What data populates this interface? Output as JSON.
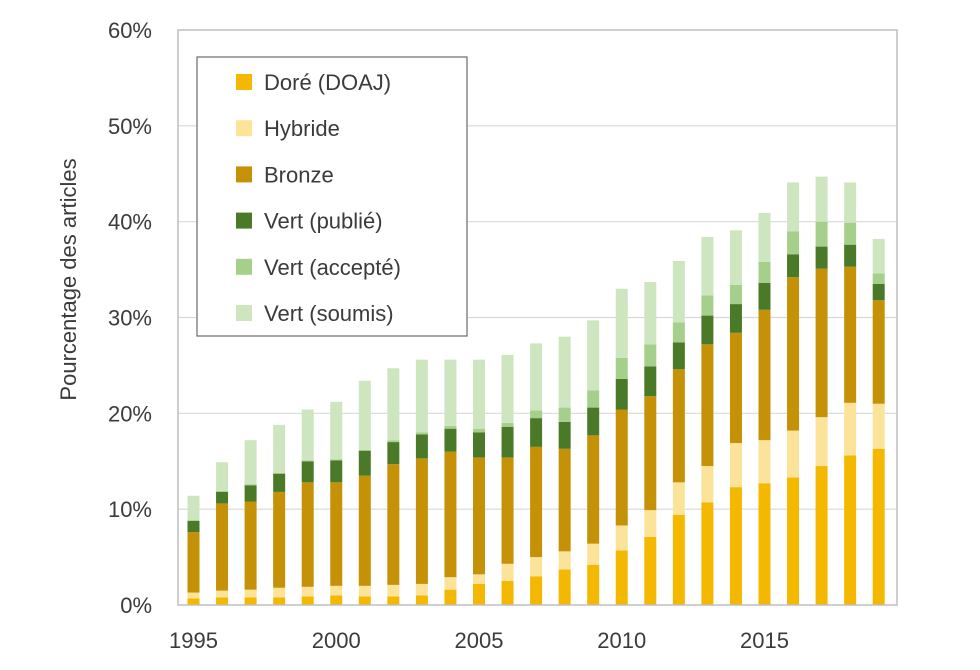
{
  "chart_data": {
    "type": "bar",
    "stacked": true,
    "title": "",
    "xlabel": "",
    "ylabel": "Pourcentage des articles",
    "ylim": [
      0,
      60
    ],
    "ytick_values": [
      0,
      10,
      20,
      30,
      40,
      50,
      60
    ],
    "ytick_labels": [
      "0%",
      "10%",
      "20%",
      "30%",
      "40%",
      "50%",
      "60%"
    ],
    "xtick_labels": [
      "1995",
      "2000",
      "2005",
      "2010",
      "2015"
    ],
    "xtick_years": [
      1995,
      2000,
      2005,
      2010,
      2015
    ],
    "grid": "horizontal",
    "legend_position": "top-left",
    "categories": [
      "1995",
      "1996",
      "1997",
      "1998",
      "1999",
      "2000",
      "2001",
      "2002",
      "2003",
      "2004",
      "2005",
      "2006",
      "2007",
      "2008",
      "2009",
      "2010",
      "2011",
      "2012",
      "2013",
      "2014",
      "2015",
      "2016",
      "2017",
      "2018",
      "2019"
    ],
    "series": [
      {
        "name": "Doré (DOAJ)",
        "color": "#f5b800",
        "values": [
          0.7,
          0.8,
          0.8,
          0.8,
          0.9,
          1.0,
          0.9,
          0.9,
          1.0,
          1.6,
          2.2,
          2.5,
          3.0,
          3.7,
          4.2,
          5.7,
          7.1,
          9.4,
          10.7,
          12.3,
          12.7,
          13.3,
          14.5,
          15.6,
          16.3
        ]
      },
      {
        "name": "Hybride",
        "color": "#fbe39a",
        "values": [
          0.6,
          0.7,
          0.8,
          1.0,
          1.0,
          1.0,
          1.1,
          1.2,
          1.2,
          1.3,
          1.0,
          1.8,
          2.0,
          1.9,
          2.2,
          2.6,
          2.8,
          3.4,
          3.8,
          4.6,
          4.5,
          4.9,
          5.1,
          5.5,
          4.7
        ]
      },
      {
        "name": "Bronze",
        "color": "#c49107",
        "values": [
          6.3,
          9.1,
          9.2,
          10.0,
          10.9,
          10.8,
          11.5,
          12.6,
          13.1,
          13.1,
          12.2,
          11.1,
          11.5,
          10.7,
          11.3,
          12.1,
          11.9,
          11.8,
          12.7,
          11.5,
          13.6,
          16.0,
          15.5,
          14.2,
          10.8
        ]
      },
      {
        "name": "Vert (publié)",
        "color": "#4a7a28",
        "values": [
          1.2,
          1.2,
          1.7,
          1.9,
          2.2,
          2.3,
          2.6,
          2.3,
          2.5,
          2.4,
          2.6,
          3.2,
          3.0,
          2.8,
          2.9,
          3.2,
          3.1,
          2.8,
          3.0,
          3.0,
          2.8,
          2.4,
          2.3,
          2.3,
          1.7
        ]
      },
      {
        "name": "Vert (accepté)",
        "color": "#a7cf8c",
        "values": [
          0.0,
          0.1,
          0.1,
          0.1,
          0.1,
          0.1,
          0.1,
          0.2,
          0.2,
          0.3,
          0.4,
          0.4,
          0.8,
          1.5,
          1.8,
          2.2,
          2.3,
          2.1,
          2.1,
          2.0,
          2.2,
          2.4,
          2.6,
          2.3,
          1.1
        ]
      },
      {
        "name": "Vert (soumis)",
        "color": "#cde6c0",
        "values": [
          2.6,
          3.0,
          4.6,
          5.0,
          5.3,
          6.0,
          7.2,
          7.5,
          7.6,
          6.9,
          7.2,
          7.1,
          7.0,
          7.4,
          7.3,
          7.2,
          6.5,
          6.4,
          6.1,
          5.7,
          5.1,
          5.1,
          4.7,
          4.2,
          3.6
        ]
      }
    ]
  }
}
